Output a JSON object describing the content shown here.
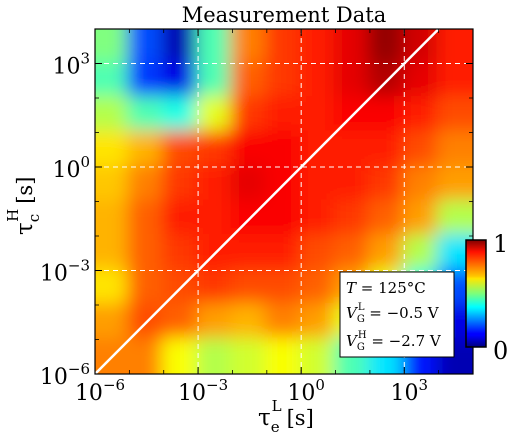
{
  "chart_data": {
    "type": "heatmap",
    "title": "Measurement Data",
    "xlabel": {
      "base": "τ",
      "sub": "e",
      "sup": "L",
      "unit": "[s]"
    },
    "ylabel": {
      "base": "τ",
      "sub": "c",
      "sup": "H",
      "unit": "[s]"
    },
    "scale": "log10",
    "xlim": [
      1e-06,
      100000.0
    ],
    "ylim": [
      1e-06,
      10000.0
    ],
    "x_ticks": [
      {
        "exp": -6,
        "mant": "10",
        "label": "−6"
      },
      {
        "exp": -3,
        "mant": "10",
        "label": "−3"
      },
      {
        "exp": 0,
        "mant": "10",
        "label": "0"
      },
      {
        "exp": 3,
        "mant": "10",
        "label": "3"
      }
    ],
    "y_ticks": [
      {
        "exp": -6,
        "mant": "10",
        "label": "−6"
      },
      {
        "exp": -3,
        "mant": "10",
        "label": "−3"
      },
      {
        "exp": 0,
        "mant": "10",
        "label": "0"
      },
      {
        "exp": 3,
        "mant": "10",
        "label": "3"
      }
    ],
    "grid": true,
    "diagonal_line": {
      "from": [
        1e-06,
        1e-06
      ],
      "to": [
        10000.0,
        10000.0
      ],
      "color": "#ffffff"
    },
    "colorbar": {
      "min_label": "0",
      "max_label": "1",
      "colormap": "jet",
      "position": "right"
    },
    "annotation": {
      "line1": {
        "base": "T",
        "eq": " = 125°C"
      },
      "line2": {
        "base": "V",
        "sub": "G",
        "sup": "L",
        "eq": " = −0.5 V"
      },
      "line3": {
        "base": "V",
        "sub": "G",
        "sup": "H",
        "eq": " = −2.7 V"
      },
      "placement": "bottom-right"
    },
    "x_log_centers": [
      -5.5,
      -4.5,
      -3.5,
      -2.5,
      -1.5,
      -0.5,
      0.5,
      1.5,
      2.5,
      3.5,
      4.5
    ],
    "y_log_centers": [
      3.5,
      2.5,
      1.5,
      0.5,
      -0.5,
      -1.5,
      -2.5,
      -3.5,
      -4.5,
      -5.5
    ],
    "z": [
      [
        0.5,
        0.2,
        0.05,
        0.45,
        0.75,
        0.82,
        0.85,
        0.9,
        0.98,
        0.92,
        0.85
      ],
      [
        0.45,
        0.18,
        0.1,
        0.45,
        0.78,
        0.82,
        0.85,
        0.9,
        0.95,
        0.9,
        0.85
      ],
      [
        0.55,
        0.45,
        0.4,
        0.6,
        0.82,
        0.85,
        0.85,
        0.88,
        0.88,
        0.85,
        0.8
      ],
      [
        0.65,
        0.7,
        0.8,
        0.82,
        0.88,
        0.88,
        0.85,
        0.85,
        0.85,
        0.8,
        0.75
      ],
      [
        0.68,
        0.75,
        0.82,
        0.85,
        0.9,
        0.88,
        0.85,
        0.85,
        0.82,
        0.75,
        0.72
      ],
      [
        0.7,
        0.78,
        0.85,
        0.85,
        0.88,
        0.88,
        0.85,
        0.82,
        0.78,
        0.72,
        0.55
      ],
      [
        0.7,
        0.78,
        0.82,
        0.85,
        0.85,
        0.85,
        0.8,
        0.78,
        0.72,
        0.55,
        0.35
      ],
      [
        0.65,
        0.78,
        0.8,
        0.82,
        0.8,
        0.8,
        0.78,
        0.72,
        0.6,
        0.4,
        0.2
      ],
      [
        0.72,
        0.8,
        0.78,
        0.72,
        0.7,
        0.75,
        0.72,
        0.6,
        0.45,
        0.25,
        0.1
      ],
      [
        0.75,
        0.75,
        0.62,
        0.55,
        0.58,
        0.62,
        0.58,
        0.45,
        0.35,
        0.15,
        0.05
      ]
    ]
  }
}
